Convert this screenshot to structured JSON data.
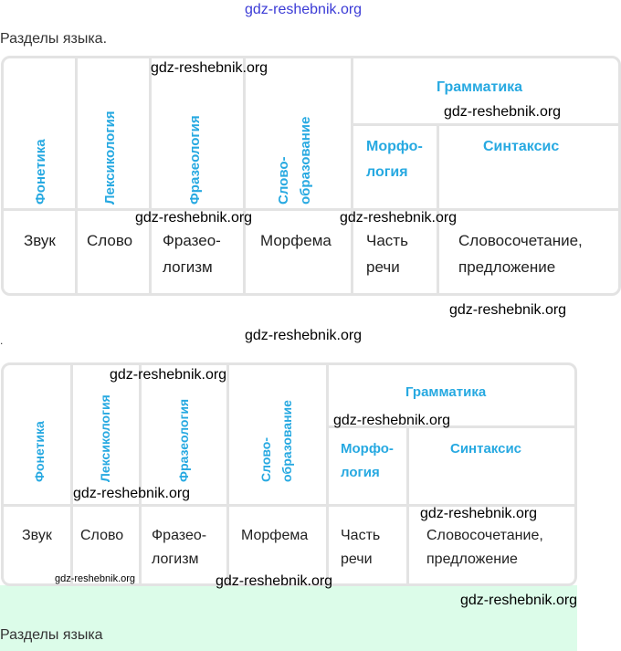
{
  "watermark": "gdz-reshebnik.org",
  "caption_top": "Разделы языка.",
  "separator_dot": ".",
  "caption_bottom": "Разделы языка",
  "table": {
    "headers": {
      "phonetics": "Фонетика",
      "lexicology": "Лексикология",
      "phraseology": "Фразеология",
      "word_formation_1": "Слово-",
      "word_formation_2": "образование",
      "grammar": "Грамматика",
      "morphology_1": "Морфо-",
      "morphology_2": "логия",
      "syntax": "Синтаксис"
    },
    "cells": {
      "phonetics": "Звук",
      "lexicology": "Слово",
      "phraseology_1": "Фразео-",
      "phraseology_2": "логизм",
      "word_formation": "Морфема",
      "morphology_1": "Часть",
      "morphology_2": "речи",
      "syntax_1": "Словосочетание,",
      "syntax_2": "предложение"
    }
  },
  "colors": {
    "accent": "#27a9e1",
    "green_bg": "#dcfce9"
  }
}
